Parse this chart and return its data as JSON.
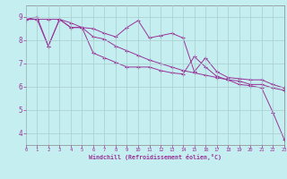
{
  "xlabel": "Windchill (Refroidissement éolien,°C)",
  "xlim": [
    0,
    23
  ],
  "ylim": [
    3.5,
    9.5
  ],
  "yticks": [
    4,
    5,
    6,
    7,
    8,
    9
  ],
  "xticks": [
    0,
    1,
    2,
    3,
    4,
    5,
    6,
    7,
    8,
    9,
    10,
    11,
    12,
    13,
    14,
    15,
    16,
    17,
    18,
    19,
    20,
    21,
    22,
    23
  ],
  "line_color": "#993399",
  "bg_color": "#c5eef0",
  "grid_color": "#aacccc",
  "line1_x": [
    0,
    1,
    2,
    3,
    4,
    5,
    6,
    7,
    8,
    9,
    10,
    11,
    12,
    13,
    14,
    15,
    16,
    17,
    18,
    19,
    20,
    21,
    22,
    23
  ],
  "line1_y": [
    8.9,
    9.0,
    7.75,
    8.9,
    8.75,
    8.55,
    8.5,
    8.3,
    8.15,
    8.55,
    8.85,
    8.1,
    8.2,
    8.3,
    8.1,
    6.65,
    7.25,
    6.65,
    6.4,
    6.35,
    6.3,
    6.3,
    6.1,
    5.95
  ],
  "line2_x": [
    0,
    1,
    2,
    3,
    4,
    5,
    6,
    7,
    8,
    9,
    10,
    11,
    12,
    13,
    14,
    15,
    16,
    17,
    18,
    19,
    20,
    21,
    22,
    23
  ],
  "line2_y": [
    8.9,
    8.9,
    8.9,
    8.9,
    8.55,
    8.55,
    8.15,
    8.05,
    7.75,
    7.55,
    7.35,
    7.15,
    7.0,
    6.85,
    6.7,
    6.6,
    6.5,
    6.4,
    6.3,
    6.25,
    6.1,
    6.1,
    5.95,
    5.85
  ],
  "line3_x": [
    0,
    1,
    2,
    3,
    4,
    5,
    6,
    7,
    8,
    9,
    10,
    11,
    12,
    13,
    14,
    15,
    16,
    17,
    18,
    19,
    20,
    21,
    22,
    23
  ],
  "line3_y": [
    8.9,
    8.9,
    7.75,
    8.9,
    8.55,
    8.55,
    7.45,
    7.25,
    7.05,
    6.85,
    6.85,
    6.85,
    6.7,
    6.6,
    6.55,
    7.3,
    6.85,
    6.45,
    6.3,
    6.1,
    6.05,
    5.95,
    4.9,
    3.75
  ]
}
